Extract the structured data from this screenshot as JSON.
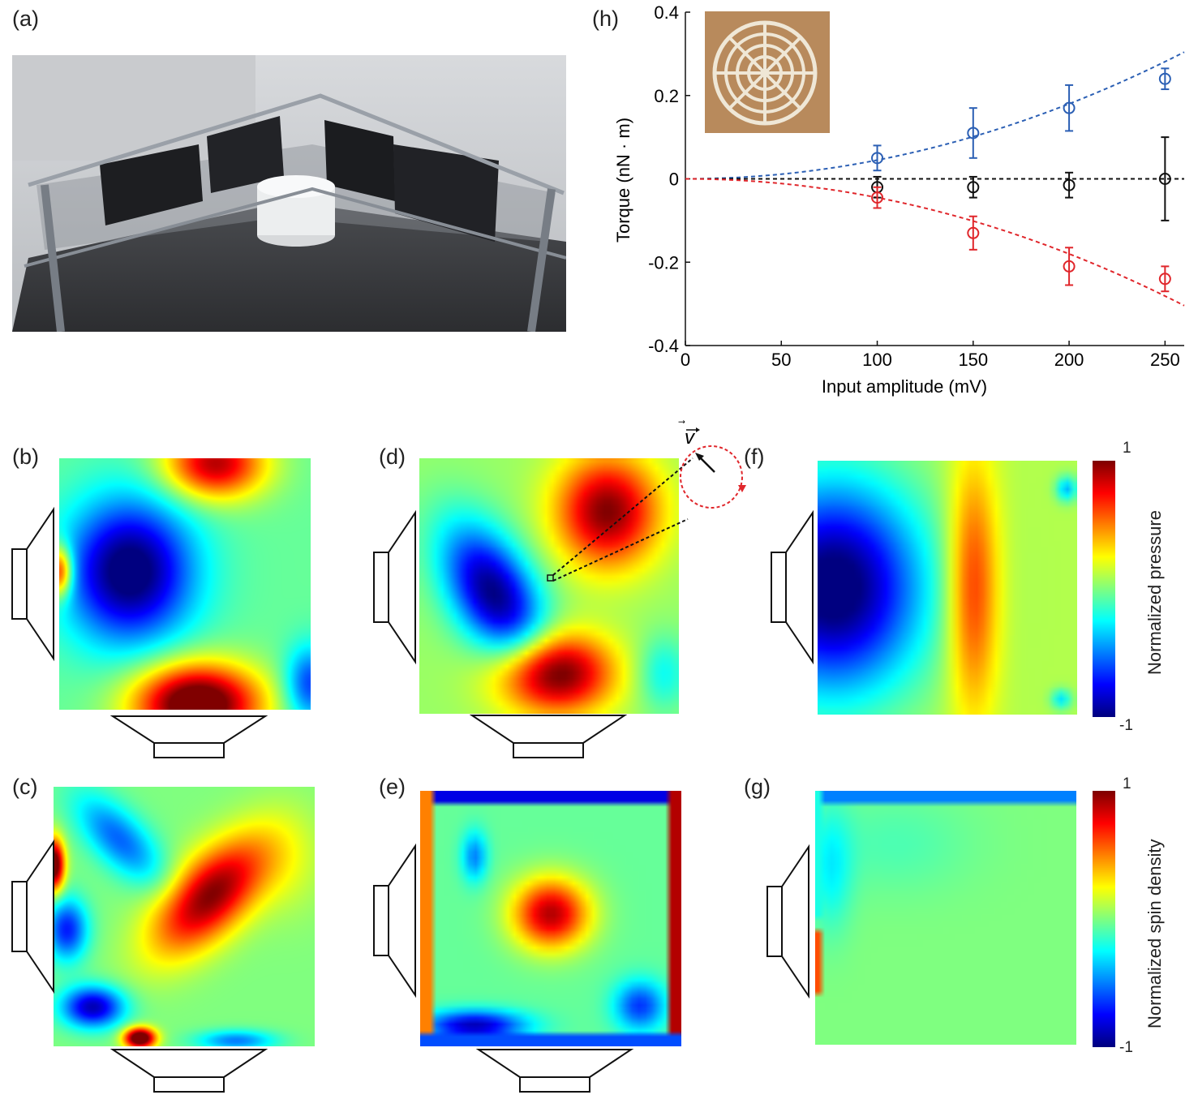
{
  "panels": {
    "a": "(a)",
    "b": "(b)",
    "c": "(c)",
    "d": "(d)",
    "e": "(e)",
    "f": "(f)",
    "g": "(g)",
    "h": "(h)"
  },
  "velocity_symbol": "v",
  "colorbars": {
    "pressure": {
      "label": "Normalized pressure",
      "max": "1",
      "min": "-1"
    },
    "spin": {
      "label": "Normalized spin density",
      "max": "1",
      "min": "-1"
    }
  },
  "colors": {
    "blue": "#2b5fb4",
    "red": "#e0262b",
    "black": "#111111"
  },
  "chart_data": {
    "type": "scatter",
    "xlabel": "Input amplitude (mV)",
    "ylabel": "Torque (nN · m)",
    "xlim": [
      0,
      260
    ],
    "ylim": [
      -0.4,
      0.4
    ],
    "xticks": [
      "0",
      "50",
      "100",
      "150",
      "200",
      "250"
    ],
    "yticks": [
      "-0.4",
      "-0.2",
      "0",
      "0.2",
      "0.4"
    ],
    "x": [
      100,
      150,
      200,
      250
    ],
    "series": [
      {
        "color": "#2b5fb4",
        "values": [
          0.05,
          0.11,
          0.17,
          0.24
        ],
        "errors": [
          0.03,
          0.06,
          0.055,
          0.025
        ]
      },
      {
        "color": "#111111",
        "values": [
          -0.02,
          -0.02,
          -0.015,
          0.0
        ],
        "errors": [
          0.025,
          0.025,
          0.03,
          0.1
        ]
      },
      {
        "color": "#e0262b",
        "values": [
          -0.045,
          -0.13,
          -0.21,
          -0.24
        ],
        "errors": [
          0.025,
          0.04,
          0.045,
          0.03
        ]
      }
    ],
    "fits": [
      {
        "color": "#2b5fb4",
        "coef": 4.5e-06,
        "power": 2
      },
      {
        "color": "#111111",
        "coef": 0,
        "power": 2
      },
      {
        "color": "#e0262b",
        "coef": -4.5e-06,
        "power": 2
      }
    ]
  }
}
